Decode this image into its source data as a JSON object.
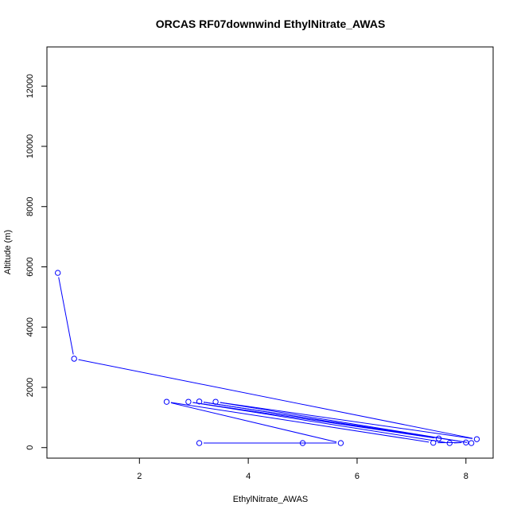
{
  "chart_data": {
    "type": "line",
    "title": "ORCAS RF07downwind EthylNitrate_AWAS",
    "xlabel": "EthylNitrate_AWAS",
    "ylabel": "Altitude (m)",
    "xlim": [
      0.3,
      8.5
    ],
    "ylim": [
      -350,
      13300
    ],
    "xticks": [
      2,
      4,
      6,
      8
    ],
    "yticks": [
      0,
      2000,
      4000,
      6000,
      8000,
      10000,
      12000
    ],
    "grid": false,
    "legend": "none",
    "series": [
      {
        "color": "#0000ff",
        "marker": "open-circle",
        "points": [
          [
            0.5,
            5800
          ],
          [
            0.8,
            2950
          ],
          [
            8.2,
            280
          ],
          [
            3.4,
            1520
          ],
          [
            8.1,
            150
          ],
          [
            3.1,
            1530
          ],
          [
            7.5,
            300
          ],
          [
            2.9,
            1520
          ],
          [
            7.7,
            150
          ],
          [
            8.0,
            170
          ],
          [
            7.4,
            160
          ],
          [
            2.5,
            1520
          ],
          [
            5.7,
            150
          ],
          [
            3.1,
            150
          ],
          [
            5.0,
            150
          ]
        ]
      }
    ]
  }
}
